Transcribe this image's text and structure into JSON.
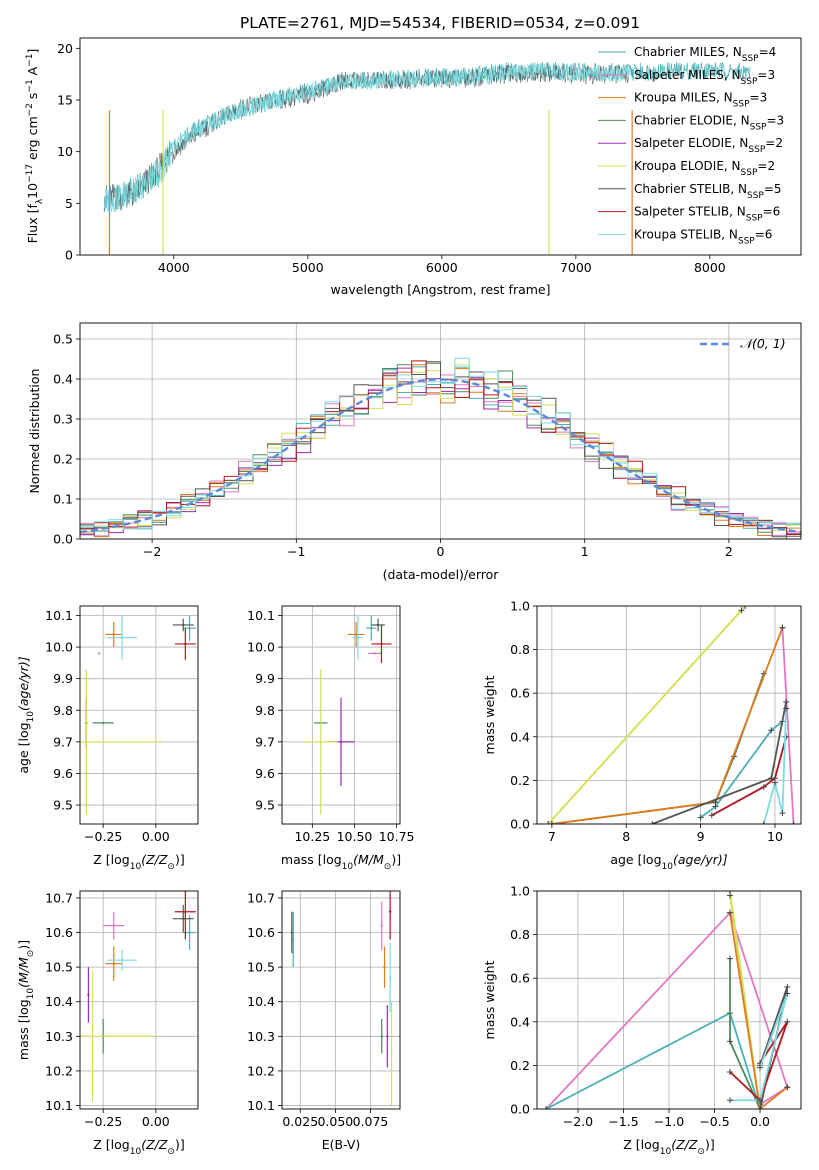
{
  "figure": {
    "title": "PLATE=2761, MJD=54534, FIBERID=0534, z=0.091"
  },
  "models": [
    {
      "name": "Chabrier MILES",
      "nssp": "4",
      "color": "#4ab0b6"
    },
    {
      "name": "Salpeter MILES",
      "nssp": "3",
      "color": "#e377c2"
    },
    {
      "name": "Kroupa MILES",
      "nssp": "3",
      "color": "#e07b1f"
    },
    {
      "name": "Chabrier ELODIE",
      "nssp": "3",
      "color": "#4f8a5b"
    },
    {
      "name": "Salpeter ELODIE",
      "nssp": "2",
      "color": "#9b2fb0"
    },
    {
      "name": "Kroupa ELODIE",
      "nssp": "2",
      "color": "#d4e157"
    },
    {
      "name": "Chabrier STELIB",
      "nssp": "5",
      "color": "#555555"
    },
    {
      "name": "Salpeter STELIB",
      "nssp": "6",
      "color": "#b0171f"
    },
    {
      "name": "Kroupa STELIB",
      "nssp": "6",
      "color": "#7fdbe0"
    }
  ],
  "chart_data": [
    {
      "id": "spectrum",
      "type": "line",
      "xlabel": "wavelength [Angstrom, rest frame]",
      "ylabel_text": "Flux [f",
      "ylabel_sub": "λ",
      "ylabel_rest": "10",
      "ylabel_exp": "−17",
      "ylabel_tail": " erg cm",
      "ylabel_exp2": "−2",
      "ylabel_tail2": " s",
      "ylabel_exp3": "−1",
      "ylabel_tail3": " A",
      "ylabel_exp4": "−1",
      "ylabel_end": "]",
      "xlim": [
        3300,
        8680
      ],
      "ylim": [
        0,
        21
      ],
      "xticks": [
        4000,
        5000,
        6000,
        7000,
        8000
      ],
      "yticks": [
        0,
        5,
        10,
        15,
        20
      ],
      "legend_position": "upper right",
      "legend_label_suffix": "N",
      "legend_label_sub": "SSP",
      "series": [
        {
          "model": 0,
          "x": [
            3480,
            3700,
            3900,
            4000,
            4200,
            4500,
            4800,
            5000,
            5300,
            5600,
            5900,
            6200,
            6500,
            6800,
            7100,
            7400,
            7700,
            8000,
            8300
          ],
          "y": [
            5.0,
            6.2,
            8.0,
            10.5,
            12.5,
            14.0,
            15.2,
            15.8,
            16.8,
            17.0,
            17.2,
            17.3,
            17.8,
            17.8,
            17.8,
            17.7,
            17.8,
            17.9,
            17.6
          ]
        },
        {
          "model": 6,
          "x": [
            3480,
            3700,
            3900,
            4000,
            4200,
            4500,
            4800,
            5000,
            5300,
            5600,
            5900,
            6200,
            6500,
            6800,
            7100,
            7400
          ],
          "y": [
            5.5,
            5.8,
            8.5,
            10.0,
            12.0,
            14.3,
            15.0,
            15.5,
            17.0,
            16.8,
            17.0,
            17.1,
            17.5,
            17.6,
            17.4,
            17.5
          ]
        },
        {
          "model": 8,
          "x": [
            3480,
            3700,
            3900,
            4000,
            4200,
            4500,
            4800,
            5000,
            5300,
            5600,
            5900,
            6200,
            6500,
            6800,
            7100,
            7400
          ],
          "y": [
            5.2,
            6.0,
            8.2,
            10.3,
            12.3,
            14.1,
            15.1,
            15.7,
            16.9,
            16.9,
            17.1,
            17.2,
            17.7,
            17.7,
            17.6,
            17.6
          ]
        }
      ],
      "spikes": [
        {
          "model": 2,
          "x": 3520,
          "y": 0
        },
        {
          "model": 5,
          "x": 3920,
          "y": 0
        },
        {
          "model": 5,
          "x": 6800,
          "y": 0
        },
        {
          "model": 2,
          "x": 7420,
          "y": 0
        }
      ]
    },
    {
      "id": "residuals",
      "type": "line",
      "xlabel": "(data-model)/error",
      "ylabel": "Normed distribution",
      "xlim": [
        -2.5,
        2.5
      ],
      "ylim": [
        0,
        0.54
      ],
      "xticks": [
        -2,
        -1,
        0,
        1,
        2
      ],
      "yticks": [
        0.0,
        0.1,
        0.2,
        0.3,
        0.4,
        0.5
      ],
      "grid": true,
      "legend_position": "upper right",
      "gaussian_label": "𝒩(0, 1)",
      "gaussian_color": "#5b8bd6",
      "bin_width": 0.1
    },
    {
      "id": "z_age",
      "type": "scatter",
      "xlabel_pre": "Z [log",
      "xlabel_sub": "10",
      "xlabel_post": "(Z/Z",
      "xlabel_sun": "⊙",
      "xlabel_end": ")]",
      "ylabel_pre": "age  [log",
      "ylabel_sub": "10",
      "ylabel_post": "(age/yr)]",
      "xlim": [
        -0.36,
        0.2
      ],
      "ylim": [
        9.44,
        10.13
      ],
      "xticks": [
        -0.25,
        0.0
      ],
      "xtick_labels": [
        "−0.25",
        "0.00"
      ],
      "yticks": [
        9.5,
        9.6,
        9.7,
        9.8,
        9.9,
        10.0,
        10.1
      ],
      "points": [
        {
          "model": 0,
          "x": 0.16,
          "y": 10.06,
          "ex": 0.03,
          "ey": 0.04
        },
        {
          "model": 1,
          "x": -0.27,
          "y": 9.98,
          "ex": 0.0,
          "ey": 0.0
        },
        {
          "model": 2,
          "x": -0.2,
          "y": 10.04,
          "ex": 0.04,
          "ey": 0.04
        },
        {
          "model": 3,
          "x": -0.25,
          "y": 9.76,
          "ex": 0.05,
          "ey": 0.0
        },
        {
          "model": 4,
          "x": -0.33,
          "y": 9.76,
          "ex": 0.0,
          "ey": 0.08
        },
        {
          "model": 5,
          "x": -0.33,
          "y": 9.7,
          "ex": 0.36,
          "ey": 0.23
        },
        {
          "model": 6,
          "x": 0.13,
          "y": 10.07,
          "ex": 0.05,
          "ey": 0.02
        },
        {
          "model": 7,
          "x": 0.14,
          "y": 10.01,
          "ex": 0.05,
          "ey": 0.05
        },
        {
          "model": 8,
          "x": -0.16,
          "y": 10.03,
          "ex": 0.07,
          "ey": 0.07
        }
      ]
    },
    {
      "id": "mass_age",
      "type": "scatter",
      "xlabel_pre": "mass [log",
      "xlabel_sub": "10",
      "xlabel_post": "(M/M",
      "xlabel_sun": "⊙",
      "xlabel_end": ")]",
      "xlim": [
        10.07,
        10.77
      ],
      "ylim": [
        9.44,
        10.13
      ],
      "xticks": [
        10.25,
        10.5,
        10.75
      ],
      "xtick_labels": [
        "10.25",
        "10.50",
        "10.75"
      ],
      "yticks": [
        9.5,
        9.6,
        9.7,
        9.8,
        9.9,
        10.0,
        10.1
      ],
      "points": [
        {
          "model": 0,
          "x": 10.6,
          "y": 10.06,
          "ex": 0.03,
          "ey": 0.04
        },
        {
          "model": 1,
          "x": 10.62,
          "y": 9.98,
          "ex": 0.04,
          "ey": 0.0
        },
        {
          "model": 2,
          "x": 10.51,
          "y": 10.04,
          "ex": 0.05,
          "ey": 0.04
        },
        {
          "model": 3,
          "x": 10.3,
          "y": 9.76,
          "ex": 0.04,
          "ey": 0.0
        },
        {
          "model": 4,
          "x": 10.42,
          "y": 9.7,
          "ex": 0.08,
          "ey": 0.14
        },
        {
          "model": 5,
          "x": 10.3,
          "y": 9.7,
          "ex": 0.1,
          "ey": 0.23
        },
        {
          "model": 6,
          "x": 10.64,
          "y": 10.07,
          "ex": 0.04,
          "ey": 0.02
        },
        {
          "model": 7,
          "x": 10.66,
          "y": 10.01,
          "ex": 0.06,
          "ey": 0.06
        },
        {
          "model": 8,
          "x": 10.52,
          "y": 10.03,
          "ex": 0.03,
          "ey": 0.07
        }
      ]
    },
    {
      "id": "age_weight",
      "type": "line",
      "xlabel_pre": "age  [log",
      "xlabel_sub": "10",
      "xlabel_post": "(age/yr)]",
      "ylabel": "mass weight",
      "xlim": [
        6.8,
        10.35
      ],
      "ylim": [
        0,
        1.0
      ],
      "xticks": [
        7,
        8,
        9,
        10
      ],
      "yticks": [
        0.0,
        0.2,
        0.4,
        0.6,
        0.8,
        1.0
      ],
      "grid": true,
      "series": [
        {
          "model": 5,
          "x": [
            6.95,
            9.6
          ],
          "y": [
            0.0,
            1.0
          ]
        },
        {
          "model": 5,
          "x": [
            6.95,
            9.55
          ],
          "y": [
            0.0,
            0.98
          ]
        },
        {
          "model": 3,
          "x": [
            7.0,
            9.2,
            9.45,
            9.85
          ],
          "y": [
            0.0,
            0.1,
            0.31,
            0.69
          ]
        },
        {
          "model": 2,
          "x": [
            7.0,
            9.2,
            10.1
          ],
          "y": [
            0.0,
            0.1,
            0.9
          ]
        },
        {
          "model": 1,
          "x": [
            10.1,
            10.25
          ],
          "y": [
            0.9,
            0.0
          ]
        },
        {
          "model": 0,
          "x": [
            9.0,
            9.2,
            9.95,
            10.1
          ],
          "y": [
            0.03,
            0.08,
            0.43,
            0.47
          ]
        },
        {
          "model": 6,
          "x": [
            8.35,
            9.95,
            10.15
          ],
          "y": [
            0.0,
            0.21,
            0.56
          ]
        },
        {
          "model": 7,
          "x": [
            9.15,
            9.85,
            10.0,
            10.15
          ],
          "y": [
            0.04,
            0.17,
            0.21,
            0.4
          ]
        },
        {
          "model": 8,
          "x": [
            9.85,
            10.0,
            10.1,
            10.15
          ],
          "y": [
            0.0,
            0.19,
            0.05,
            0.53
          ]
        }
      ]
    },
    {
      "id": "z_mass",
      "type": "scatter",
      "xlabel_pre": "Z [log",
      "xlabel_sub": "10",
      "xlabel_post": "(Z/Z",
      "xlabel_sun": "⊙",
      "xlabel_end": ")]",
      "ylabel_pre": "mass [log",
      "ylabel_sub": "10",
      "ylabel_post": "(M/M",
      "ylabel_sun": "⊙",
      "ylabel_end": ")]",
      "xlim": [
        -0.36,
        0.2
      ],
      "ylim": [
        10.09,
        10.72
      ],
      "xticks": [
        -0.25,
        0.0
      ],
      "xtick_labels": [
        "−0.25",
        "0.00"
      ],
      "yticks": [
        10.1,
        10.2,
        10.3,
        10.4,
        10.5,
        10.6,
        10.7
      ],
      "points": [
        {
          "model": 0,
          "x": 0.16,
          "y": 10.6,
          "ex": 0.03,
          "ey": 0.05
        },
        {
          "model": 1,
          "x": -0.2,
          "y": 10.62,
          "ex": 0.05,
          "ey": 0.04
        },
        {
          "model": 2,
          "x": -0.2,
          "y": 10.51,
          "ex": 0.04,
          "ey": 0.05
        },
        {
          "model": 3,
          "x": -0.25,
          "y": 10.3,
          "ex": 0.0,
          "ey": 0.05
        },
        {
          "model": 4,
          "x": -0.32,
          "y": 10.42,
          "ex": 0.0,
          "ey": 0.08
        },
        {
          "model": 5,
          "x": -0.3,
          "y": 10.3,
          "ex": 0.3,
          "ey": 0.19
        },
        {
          "model": 6,
          "x": 0.13,
          "y": 10.64,
          "ex": 0.05,
          "ey": 0.04
        },
        {
          "model": 7,
          "x": 0.14,
          "y": 10.66,
          "ex": 0.05,
          "ey": 0.08
        },
        {
          "model": 8,
          "x": -0.16,
          "y": 10.52,
          "ex": 0.07,
          "ey": 0.03
        }
      ]
    },
    {
      "id": "ebv_mass",
      "type": "scatter",
      "xlabel": "E(B-V)",
      "xlim": [
        0.012,
        0.096
      ],
      "ylim": [
        10.09,
        10.72
      ],
      "xticks": [
        0.025,
        0.05,
        0.075
      ],
      "xtick_labels": [
        "0.025",
        "0.050",
        "0.075"
      ],
      "yticks": [
        10.1,
        10.2,
        10.3,
        10.4,
        10.5,
        10.6,
        10.7
      ],
      "points": [
        {
          "model": 0,
          "x": 0.02,
          "y": 10.58,
          "ex": 0.0,
          "ey": 0.08
        },
        {
          "model": 1,
          "x": 0.083,
          "y": 10.62,
          "ex": 0.0,
          "ey": 0.07
        },
        {
          "model": 2,
          "x": 0.085,
          "y": 10.5,
          "ex": 0.0,
          "ey": 0.06
        },
        {
          "model": 3,
          "x": 0.083,
          "y": 10.3,
          "ex": 0.0,
          "ey": 0.05
        },
        {
          "model": 4,
          "x": 0.087,
          "y": 10.3,
          "ex": 0.0,
          "ey": 0.09
        },
        {
          "model": 5,
          "x": 0.09,
          "y": 10.25,
          "ex": 0.0,
          "ey": 0.15
        },
        {
          "model": 6,
          "x": 0.019,
          "y": 10.6,
          "ex": 0.0,
          "ey": 0.06
        },
        {
          "model": 7,
          "x": 0.089,
          "y": 10.66,
          "ex": 0.0,
          "ey": 0.08
        },
        {
          "model": 8,
          "x": 0.089,
          "y": 10.47,
          "ex": 0.0,
          "ey": 0.1
        }
      ]
    },
    {
      "id": "z_weight",
      "type": "line",
      "xlabel_pre": "Z [log",
      "xlabel_sub": "10",
      "xlabel_post": "(Z/Z",
      "xlabel_sun": "⊙",
      "xlabel_end": ")]",
      "ylabel": "mass weight",
      "xlim": [
        -2.45,
        0.45
      ],
      "ylim": [
        0,
        1.0
      ],
      "xticks": [
        -2.0,
        -1.5,
        -1.0,
        -0.5,
        0.0
      ],
      "xtick_labels": [
        "−2.0",
        "−1.5",
        "−1.0",
        "−0.5",
        "0.0"
      ],
      "yticks": [
        0.0,
        0.2,
        0.4,
        0.6,
        0.8,
        1.0
      ],
      "grid": true,
      "series": [
        {
          "model": 1,
          "x": [
            -2.35,
            -0.33,
            0.3,
            0.0
          ],
          "y": [
            0.0,
            0.9,
            0.1,
            0.02
          ]
        },
        {
          "model": 0,
          "x": [
            -2.35,
            -0.33,
            0.0
          ],
          "y": [
            0.0,
            0.44,
            0.0
          ]
        },
        {
          "model": 5,
          "x": [
            -0.33,
            0.0,
            -0.33
          ],
          "y": [
            1.0,
            0.0,
            0.98
          ]
        },
        {
          "model": 3,
          "x": [
            -0.33,
            -0.33,
            0.0,
            0.0
          ],
          "y": [
            0.69,
            0.31,
            0.0,
            0.0
          ]
        },
        {
          "model": 2,
          "x": [
            -0.33,
            0.0,
            0.3
          ],
          "y": [
            0.9,
            0.0,
            0.1
          ]
        },
        {
          "model": 6,
          "x": [
            0.0,
            0.3,
            0.0
          ],
          "y": [
            0.0,
            0.56,
            0.2
          ]
        },
        {
          "model": 7,
          "x": [
            -0.33,
            0.0,
            0.3,
            0.0
          ],
          "y": [
            0.17,
            0.04,
            0.4,
            0.21
          ]
        },
        {
          "model": 8,
          "x": [
            -0.33,
            0.0,
            0.3,
            0.0
          ],
          "y": [
            0.04,
            0.04,
            0.53,
            0.19
          ]
        }
      ]
    }
  ]
}
